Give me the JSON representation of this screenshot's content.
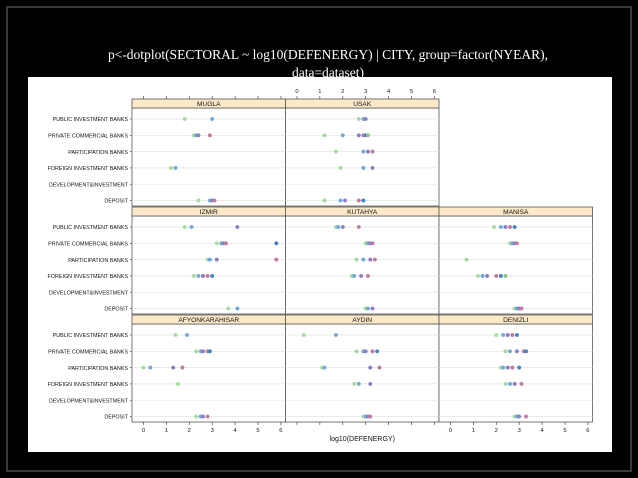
{
  "slide": {
    "title_line1": "p<-dotplot(SECTORAL ~ log10(DEFENERGY) | CITY, group=factor(NYEAR),",
    "title_line2": "data=dataset)"
  },
  "chart_data": {
    "type": "scatter",
    "subtype": "trellis-dotplot",
    "xlabel": "log10(DEFENERGY)",
    "xlim": [
      -0.5,
      6.2
    ],
    "xticks": [
      0,
      1,
      2,
      3,
      4,
      5,
      6
    ],
    "categories": [
      "PUBLIC INVESTMENT BANKS",
      "PRIVATE COMMERCIAL BANKS",
      "PARTICIPATION BANKS",
      "FOREIGN INVESTMENT BANKS",
      "DEVELOPMENT&INVESTMENT",
      "DEPOSIT"
    ],
    "group_colors": [
      "#a6dba0",
      "#6fa8dc",
      "#8e7cc3",
      "#c27ba0",
      "#3d85c6",
      "#93c47d",
      "#cc66cc",
      "#674ea7",
      "#2e7d32"
    ],
    "panels": [
      {
        "city": "AFYONKARAHISAR",
        "row": 0,
        "col": 0,
        "points": [
          {
            "cat": 0,
            "x": [
              1.4,
              1.9
            ]
          },
          {
            "cat": 1,
            "x": [
              2.3,
              2.5,
              2.6,
              2.8,
              2.9
            ]
          },
          {
            "cat": 2,
            "x": [
              0.0,
              0.3,
              1.3,
              1.7
            ]
          },
          {
            "cat": 3,
            "x": [
              1.5
            ]
          },
          {
            "cat": 5,
            "x": [
              2.3,
              2.5,
              2.6,
              2.8
            ]
          }
        ]
      },
      {
        "city": "AYDIN",
        "row": 0,
        "col": 1,
        "points": [
          {
            "cat": 0,
            "x": [
              0.3,
              1.7
            ]
          },
          {
            "cat": 1,
            "x": [
              2.6,
              2.9,
              3.0,
              3.3,
              3.5
            ]
          },
          {
            "cat": 2,
            "x": [
              1.1,
              1.2,
              3.2,
              3.6
            ]
          },
          {
            "cat": 3,
            "x": [
              2.5,
              2.7,
              3.2
            ]
          },
          {
            "cat": 5,
            "x": [
              2.9,
              3.0,
              3.1,
              3.2
            ]
          }
        ]
      },
      {
        "city": "DENIZLI",
        "row": 0,
        "col": 2,
        "points": [
          {
            "cat": 0,
            "x": [
              2.0,
              2.3,
              2.5,
              2.7,
              2.9
            ]
          },
          {
            "cat": 1,
            "x": [
              2.4,
              2.6,
              2.9,
              3.2,
              3.3
            ]
          },
          {
            "cat": 2,
            "x": [
              2.2,
              2.3,
              2.5,
              2.7,
              3.0
            ]
          },
          {
            "cat": 3,
            "x": [
              2.4,
              2.6,
              2.8,
              3.1
            ]
          },
          {
            "cat": 5,
            "x": [
              2.8,
              2.9,
              3.0,
              3.3
            ]
          }
        ]
      },
      {
        "city": "IZMIR",
        "row": 1,
        "col": 0,
        "points": [
          {
            "cat": 0,
            "x": [
              1.8,
              2.1,
              4.1
            ]
          },
          {
            "cat": 1,
            "x": [
              3.2,
              3.4,
              3.5,
              3.6,
              5.8
            ]
          },
          {
            "cat": 2,
            "x": [
              2.8,
              2.9,
              3.2,
              5.8
            ]
          },
          {
            "cat": 3,
            "x": [
              2.2,
              2.4,
              2.6,
              2.8,
              3.0
            ]
          },
          {
            "cat": 5,
            "x": [
              3.7,
              4.1
            ]
          }
        ]
      },
      {
        "city": "KUTAHYA",
        "row": 1,
        "col": 1,
        "points": [
          {
            "cat": 0,
            "x": [
              1.7,
              1.8,
              2.0,
              2.7
            ]
          },
          {
            "cat": 1,
            "x": [
              3.0,
              3.1,
              3.2,
              3.3
            ]
          },
          {
            "cat": 2,
            "x": [
              2.6,
              2.9,
              3.2,
              3.4
            ]
          },
          {
            "cat": 3,
            "x": [
              2.4,
              2.5,
              2.8,
              3.1
            ]
          },
          {
            "cat": 5,
            "x": [
              3.0,
              3.1,
              3.3
            ]
          }
        ]
      },
      {
        "city": "MANISA",
        "row": 1,
        "col": 2,
        "points": [
          {
            "cat": 0,
            "x": [
              1.9,
              2.2,
              2.4,
              2.6,
              2.8
            ]
          },
          {
            "cat": 1,
            "x": [
              2.6,
              2.7,
              2.8,
              2.9
            ]
          },
          {
            "cat": 2,
            "x": [
              0.7
            ]
          },
          {
            "cat": 3,
            "x": [
              1.2,
              1.4,
              1.6,
              2.0,
              2.2,
              2.4
            ]
          },
          {
            "cat": 5,
            "x": [
              2.8,
              2.9,
              3.0,
              3.1
            ]
          }
        ]
      },
      {
        "city": "MUGLA",
        "row": 2,
        "col": 0,
        "points": [
          {
            "cat": 0,
            "x": [
              1.8,
              3.0
            ]
          },
          {
            "cat": 1,
            "x": [
              2.2,
              2.3,
              2.4,
              2.9
            ]
          },
          {
            "cat": 3,
            "x": [
              1.2,
              1.4
            ]
          },
          {
            "cat": 5,
            "x": [
              2.4,
              2.9,
              3.0,
              3.1
            ]
          }
        ]
      },
      {
        "city": "USAK",
        "row": 2,
        "col": 1,
        "points": [
          {
            "cat": 0,
            "x": [
              2.7,
              2.9,
              3.0
            ]
          },
          {
            "cat": 1,
            "x": [
              1.2,
              2.0,
              2.7,
              2.9,
              3.0,
              3.1
            ]
          },
          {
            "cat": 2,
            "x": [
              1.7,
              2.9,
              3.1,
              3.3
            ]
          },
          {
            "cat": 3,
            "x": [
              1.9,
              2.9,
              3.3
            ]
          },
          {
            "cat": 5,
            "x": [
              1.2,
              1.9,
              2.1,
              2.7,
              2.9
            ]
          }
        ]
      }
    ]
  }
}
